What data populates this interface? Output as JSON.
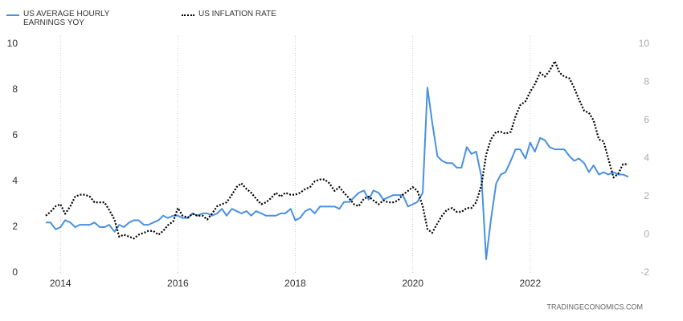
{
  "chart_data": {
    "type": "line",
    "source": "TRADINGECONOMICS.COM",
    "x": [
      2013.75,
      2013.83,
      2013.92,
      2014.0,
      2014.08,
      2014.17,
      2014.25,
      2014.33,
      2014.42,
      2014.5,
      2014.58,
      2014.67,
      2014.75,
      2014.83,
      2014.92,
      2015.0,
      2015.08,
      2015.17,
      2015.25,
      2015.33,
      2015.42,
      2015.5,
      2015.58,
      2015.67,
      2015.75,
      2015.83,
      2015.92,
      2016.0,
      2016.08,
      2016.17,
      2016.25,
      2016.33,
      2016.42,
      2016.5,
      2016.58,
      2016.67,
      2016.75,
      2016.83,
      2016.92,
      2017.0,
      2017.08,
      2017.17,
      2017.25,
      2017.33,
      2017.42,
      2017.5,
      2017.58,
      2017.67,
      2017.75,
      2017.83,
      2017.92,
      2018.0,
      2018.08,
      2018.17,
      2018.25,
      2018.33,
      2018.42,
      2018.5,
      2018.58,
      2018.67,
      2018.75,
      2018.83,
      2018.92,
      2019.0,
      2019.08,
      2019.17,
      2019.25,
      2019.33,
      2019.42,
      2019.5,
      2019.58,
      2019.67,
      2019.75,
      2019.83,
      2019.92,
      2020.0,
      2020.08,
      2020.17,
      2020.25,
      2020.33,
      2020.42,
      2020.5,
      2020.58,
      2020.67,
      2020.75,
      2020.83,
      2020.92,
      2021.0,
      2021.08,
      2021.17,
      2021.25,
      2021.33,
      2021.42,
      2021.5,
      2021.58,
      2021.67,
      2021.75,
      2021.83,
      2021.92,
      2022.0,
      2022.08,
      2022.17,
      2022.25,
      2022.33,
      2022.42,
      2022.5,
      2022.58,
      2022.67,
      2022.75,
      2022.83,
      2022.92,
      2023.0,
      2023.08,
      2023.17,
      2023.25,
      2023.33,
      2023.42,
      2023.5,
      2023.58,
      2023.67
    ],
    "series": [
      {
        "name": "US AVERAGE HOURLY EARNINGS YOY",
        "color": "#4a90e2",
        "style": "solid",
        "axis": "y",
        "values": [
          2.2,
          2.2,
          1.9,
          2.0,
          2.3,
          2.2,
          2.0,
          2.1,
          2.1,
          2.1,
          2.2,
          2.0,
          2.0,
          2.1,
          1.8,
          2.1,
          2.0,
          2.2,
          2.3,
          2.3,
          2.1,
          2.1,
          2.2,
          2.3,
          2.5,
          2.4,
          2.5,
          2.5,
          2.4,
          2.4,
          2.6,
          2.5,
          2.6,
          2.6,
          2.5,
          2.6,
          2.8,
          2.5,
          2.8,
          2.7,
          2.6,
          2.7,
          2.5,
          2.7,
          2.6,
          2.5,
          2.5,
          2.5,
          2.6,
          2.6,
          2.8,
          2.3,
          2.4,
          2.7,
          2.8,
          2.6,
          2.9,
          2.9,
          2.9,
          2.9,
          2.8,
          3.1,
          3.1,
          3.3,
          3.5,
          3.6,
          3.2,
          3.6,
          3.5,
          3.2,
          3.3,
          3.4,
          3.4,
          3.4,
          2.9,
          3.0,
          3.1,
          3.5,
          8.1,
          6.6,
          5.1,
          4.9,
          4.8,
          4.8,
          4.6,
          4.6,
          5.5,
          5.2,
          5.3,
          4.2,
          0.6,
          2.3,
          3.9,
          4.3,
          4.4,
          4.9,
          5.4,
          5.4,
          5.0,
          5.7,
          5.3,
          5.9,
          5.8,
          5.5,
          5.4,
          5.4,
          5.4,
          5.1,
          4.9,
          5.0,
          4.8,
          4.4,
          4.7,
          4.3,
          4.4,
          4.3,
          4.4,
          4.3,
          4.3,
          4.2
        ]
      },
      {
        "name": "US INFLATION RATE",
        "color": "#000000",
        "style": "dotted",
        "axis": "y2",
        "values": [
          1.0,
          1.2,
          1.5,
          1.6,
          1.1,
          1.5,
          2.0,
          2.1,
          2.1,
          2.0,
          1.7,
          1.7,
          1.7,
          1.3,
          0.8,
          -0.1,
          0.0,
          -0.1,
          -0.2,
          0.0,
          0.1,
          0.2,
          0.2,
          0.0,
          0.2,
          0.5,
          0.7,
          1.4,
          1.0,
          0.9,
          1.1,
          1.0,
          1.0,
          0.8,
          1.1,
          1.5,
          1.6,
          1.7,
          2.1,
          2.5,
          2.7,
          2.4,
          2.2,
          1.9,
          1.6,
          1.7,
          1.9,
          2.2,
          2.0,
          2.2,
          2.1,
          2.1,
          2.2,
          2.4,
          2.5,
          2.8,
          2.9,
          2.9,
          2.7,
          2.3,
          2.5,
          2.2,
          1.9,
          1.6,
          1.5,
          1.9,
          2.0,
          1.8,
          1.6,
          1.8,
          1.7,
          1.7,
          1.8,
          2.1,
          2.3,
          2.5,
          2.3,
          1.5,
          0.3,
          0.1,
          0.6,
          1.0,
          1.3,
          1.4,
          1.2,
          1.2,
          1.4,
          1.4,
          1.7,
          2.6,
          4.2,
          5.0,
          5.4,
          5.4,
          5.3,
          5.4,
          6.2,
          6.8,
          7.0,
          7.5,
          7.9,
          8.5,
          8.3,
          8.6,
          9.1,
          8.5,
          8.3,
          8.2,
          7.7,
          7.1,
          6.5,
          6.4,
          6.0,
          5.0,
          4.9,
          4.0,
          3.0,
          3.2,
          3.7,
          3.7
        ]
      }
    ],
    "xlim": [
      2013.6,
      2023.85
    ],
    "xticks": [
      2014,
      2016,
      2018,
      2020,
      2022
    ],
    "ylim": [
      0,
      10
    ],
    "yticks": [
      0,
      2,
      4,
      6,
      8,
      10
    ],
    "y2lim": [
      -2,
      10
    ],
    "y2ticks": [
      -2,
      0,
      2,
      4,
      6,
      8,
      10
    ],
    "grid": "x"
  }
}
